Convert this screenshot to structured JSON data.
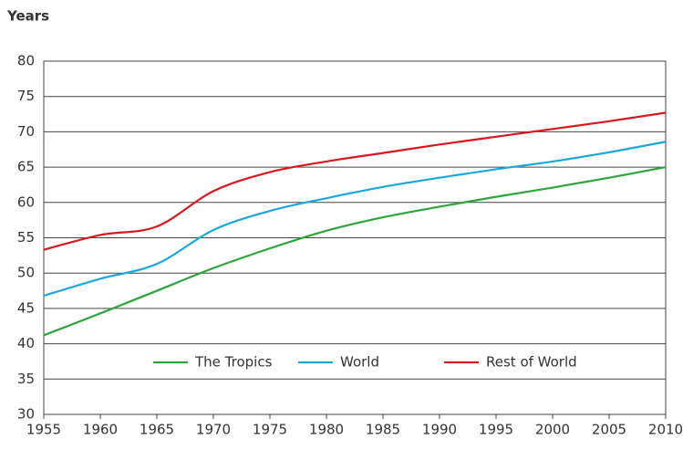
{
  "chart_data": {
    "type": "line",
    "y_label": "Years",
    "x": [
      1955,
      1960,
      1965,
      1970,
      1975,
      1980,
      1985,
      1990,
      1995,
      2000,
      2005,
      2010
    ],
    "series": [
      {
        "name": "The Tropics",
        "color": "#2ca53a",
        "values": [
          41.2,
          44.3,
          47.5,
          50.7,
          53.5,
          56.0,
          57.9,
          59.4,
          60.8,
          62.1,
          63.5,
          65.0
        ]
      },
      {
        "name": "World",
        "color": "#1aa7e0",
        "values": [
          46.8,
          49.2,
          51.3,
          56.1,
          58.8,
          60.6,
          62.2,
          63.5,
          64.7,
          65.8,
          67.1,
          68.6
        ]
      },
      {
        "name": "Rest of World",
        "color": "#d7191f",
        "values": [
          53.3,
          55.4,
          56.6,
          61.6,
          64.3,
          65.8,
          67.0,
          68.2,
          69.3,
          70.4,
          71.5,
          72.7
        ]
      }
    ],
    "xlim": [
      1955,
      2010
    ],
    "xticks": [
      1955,
      1960,
      1965,
      1970,
      1975,
      1980,
      1985,
      1990,
      1995,
      2000,
      2005,
      2010
    ],
    "ylim": [
      30,
      80
    ],
    "yticks": [
      30,
      35,
      40,
      45,
      50,
      55,
      60,
      65,
      70,
      75,
      80
    ],
    "grid": true,
    "legend": "bottom"
  }
}
